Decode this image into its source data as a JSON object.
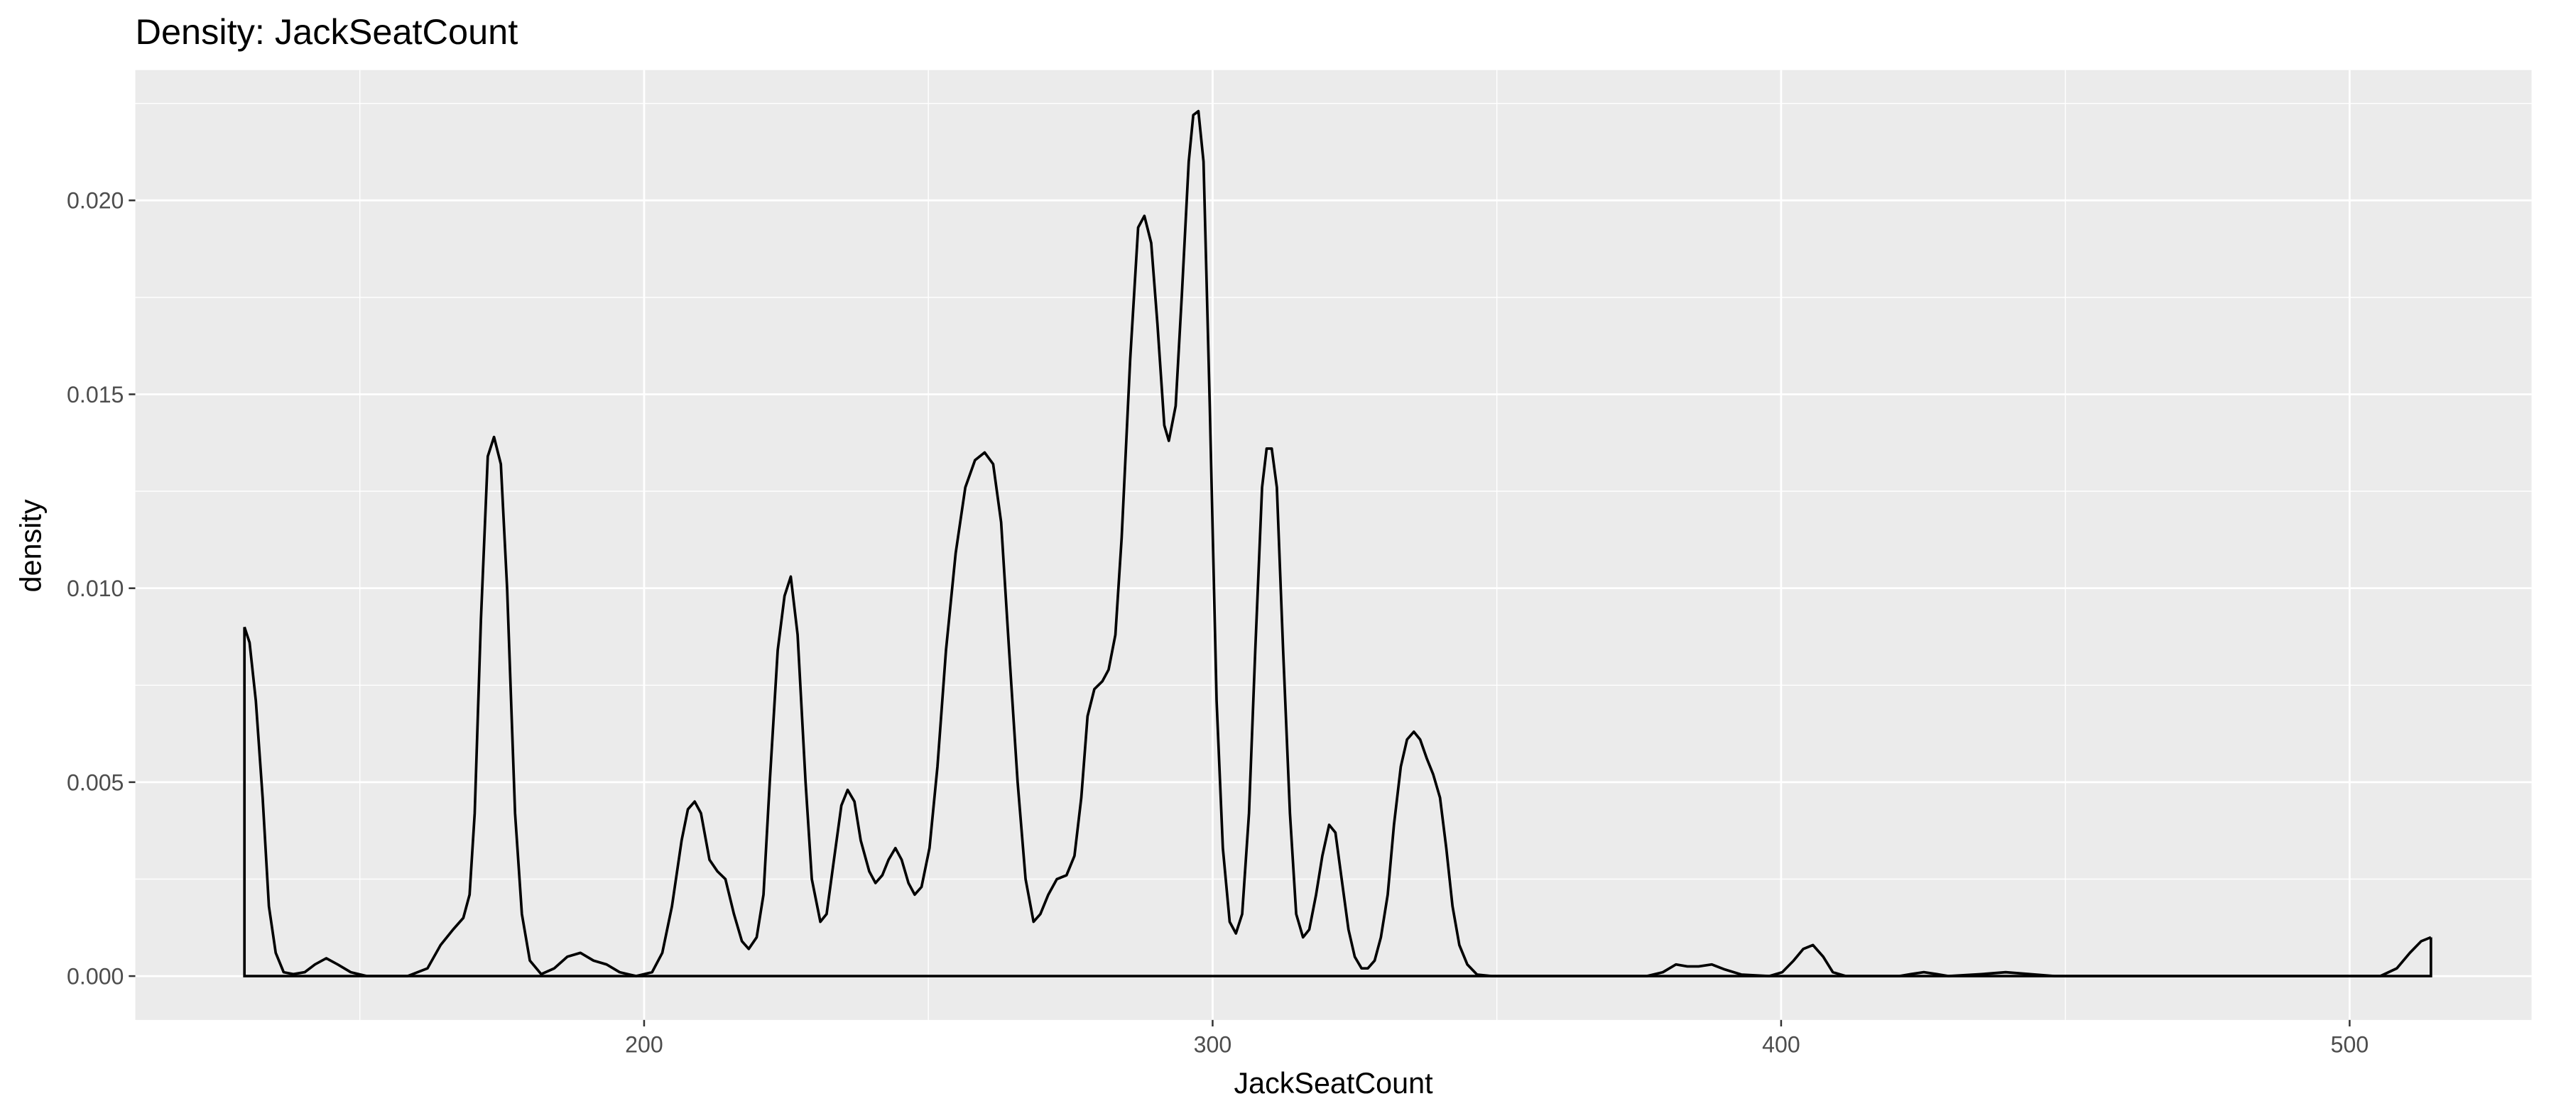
{
  "chart_data": {
    "type": "density",
    "title": "Density: JackSeatCount",
    "x_label": "JackSeatCount",
    "y_label": "density",
    "color": "#000000",
    "panel_color": "#ebebeb",
    "grid": true,
    "xlim": [
      110.5,
      532
    ],
    "ylim": [
      -0.00113,
      0.02336
    ],
    "xticks": [
      200,
      300,
      400,
      500
    ],
    "yticks": [
      {
        "value": 0,
        "label": "0.000"
      },
      0.005,
      {
        "value": 0.01,
        "label": "0.010"
      },
      0.015,
      {
        "value": 0.02,
        "label": "0.020"
      }
    ],
    "x": [
      129.7,
      130.6,
      131.7,
      132.9,
      134.0,
      135.2,
      136.6,
      138.3,
      140.3,
      142.1,
      144.1,
      146.1,
      148.4,
      151.2,
      158.4,
      161.9,
      164.2,
      166.4,
      168.2,
      169.3,
      170.2,
      171.3,
      172.5,
      173.6,
      174.8,
      175.9,
      177.3,
      178.5,
      179.9,
      181.9,
      184.2,
      186.5,
      188.8,
      191.1,
      193.4,
      195.7,
      198.6,
      201.4,
      203.2,
      204.9,
      206.6,
      207.7,
      208.9,
      210.0,
      211.5,
      212.9,
      214.3,
      215.8,
      217.2,
      218.4,
      219.8,
      221.0,
      222.1,
      223.5,
      224.7,
      225.8,
      227.0,
      228.4,
      229.5,
      231.0,
      232.1,
      233.3,
      234.7,
      235.8,
      237.0,
      238.1,
      239.6,
      240.7,
      241.9,
      243.0,
      244.2,
      245.3,
      246.5,
      247.6,
      248.8,
      250.2,
      251.6,
      253.1,
      254.8,
      256.5,
      258.2,
      259.9,
      261.4,
      262.8,
      264.2,
      265.7,
      267.1,
      268.5,
      269.7,
      271.1,
      272.6,
      274.3,
      275.7,
      276.9,
      278.0,
      279.2,
      280.6,
      281.7,
      282.9,
      284.0,
      285.5,
      286.9,
      288.0,
      289.2,
      290.3,
      291.5,
      292.3,
      293.5,
      294.6,
      295.8,
      296.6,
      297.5,
      298.4,
      299.5,
      300.7,
      301.8,
      303.0,
      304.1,
      305.2,
      306.4,
      307.5,
      308.7,
      309.5,
      310.4,
      311.3,
      312.4,
      313.6,
      314.7,
      315.9,
      317.0,
      318.2,
      319.3,
      320.5,
      321.6,
      322.7,
      323.9,
      325.0,
      326.2,
      327.3,
      328.5,
      329.6,
      330.8,
      331.9,
      333.1,
      334.2,
      335.4,
      336.5,
      337.7,
      338.8,
      340.0,
      341.1,
      342.2,
      343.4,
      344.8,
      346.5,
      349.1,
      376.4,
      379.2,
      381.5,
      383.5,
      385.5,
      387.8,
      390.1,
      393.0,
      397.9,
      400.2,
      402.2,
      403.9,
      405.6,
      407.4,
      409.1,
      411.4,
      420.8,
      422.8,
      425.1,
      427.4,
      429.4,
      435.2,
      439.5,
      443.8,
      448.1,
      505.4,
      508.3,
      510.6,
      512.6,
      514.3
    ],
    "values": [
      0.009,
      0.0086,
      0.0071,
      0.0046,
      0.0018,
      0.0006,
      0.0001,
      5e-05,
      0.0001,
      0.0003,
      0.00046,
      0.0003,
      0.0001,
      0,
      0,
      0.0002,
      0.0008,
      0.0012,
      0.0015,
      0.0021,
      0.0042,
      0.0092,
      0.0134,
      0.0139,
      0.0132,
      0.01,
      0.0042,
      0.0016,
      0.0004,
      5e-05,
      0.0002,
      0.0005,
      0.0006,
      0.0004,
      0.0003,
      0.0001,
      0,
      0.0001,
      0.0006,
      0.0018,
      0.0035,
      0.0043,
      0.0045,
      0.0042,
      0.003,
      0.0027,
      0.0025,
      0.0016,
      0.0009,
      0.0007,
      0.001,
      0.0021,
      0.005,
      0.0084,
      0.0098,
      0.0103,
      0.0088,
      0.005,
      0.0025,
      0.0014,
      0.0016,
      0.0029,
      0.0044,
      0.0048,
      0.0045,
      0.0035,
      0.0027,
      0.0024,
      0.0026,
      0.003,
      0.0033,
      0.003,
      0.0024,
      0.0021,
      0.0023,
      0.0033,
      0.0054,
      0.0084,
      0.0109,
      0.0126,
      0.0133,
      0.0135,
      0.0132,
      0.0117,
      0.0084,
      0.005,
      0.0025,
      0.0014,
      0.0016,
      0.0021,
      0.0025,
      0.0026,
      0.0031,
      0.0046,
      0.0067,
      0.0074,
      0.0076,
      0.0079,
      0.0088,
      0.0113,
      0.0159,
      0.0193,
      0.0196,
      0.0189,
      0.0168,
      0.0142,
      0.0138,
      0.0147,
      0.0176,
      0.021,
      0.0222,
      0.0223,
      0.021,
      0.0147,
      0.0071,
      0.0033,
      0.0014,
      0.0011,
      0.0016,
      0.0042,
      0.0084,
      0.0126,
      0.0136,
      0.0136,
      0.0126,
      0.0084,
      0.0042,
      0.0016,
      0.001,
      0.0012,
      0.0021,
      0.0031,
      0.0039,
      0.0037,
      0.0025,
      0.0012,
      0.0005,
      0.0002,
      0.0002,
      0.0004,
      0.001,
      0.0021,
      0.0039,
      0.0054,
      0.0061,
      0.0063,
      0.0061,
      0.0056,
      0.0052,
      0.0046,
      0.0033,
      0.0018,
      0.0008,
      0.0003,
      4e-05,
      0,
      0,
      0.0001,
      0.0003,
      0.00025,
      0.00025,
      0.0003,
      0.00017,
      4e-05,
      0,
      0.0001,
      0.0004,
      0.0007,
      0.0008,
      0.0005,
      0.0001,
      0,
      0,
      5e-05,
      0.0001,
      5e-05,
      0,
      5e-05,
      0.0001,
      5e-05,
      0,
      0,
      0.0002,
      0.0006,
      0.0009,
      0.001
    ]
  }
}
